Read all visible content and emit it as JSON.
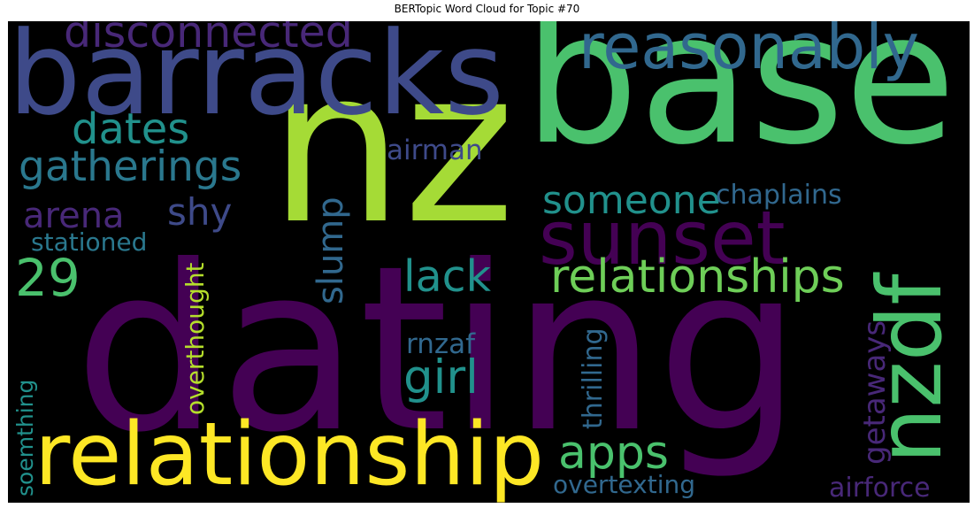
{
  "title": "BERTopic Word Cloud for Topic #70",
  "words": [
    {
      "text": "dating",
      "color": "#440154"
    },
    {
      "text": "nz",
      "color": "#a5db36"
    },
    {
      "text": "base",
      "color": "#4ac16d"
    },
    {
      "text": "barracks",
      "color": "#3e4a89"
    },
    {
      "text": "relationship",
      "color": "#fde725"
    },
    {
      "text": "nzdf",
      "color": "#4ac16d"
    },
    {
      "text": "sunset",
      "color": "#440154"
    },
    {
      "text": "reasonably",
      "color": "#31688e"
    },
    {
      "text": "disconnected",
      "color": "#482878"
    },
    {
      "text": "relationships",
      "color": "#6ece58"
    },
    {
      "text": "gatherings",
      "color": "#2a788e"
    },
    {
      "text": "dates",
      "color": "#21918c"
    },
    {
      "text": "someone",
      "color": "#21918c"
    },
    {
      "text": "shy",
      "color": "#3e4a89"
    },
    {
      "text": "arena",
      "color": "#482878"
    },
    {
      "text": "lack",
      "color": "#21918c"
    },
    {
      "text": "girl",
      "color": "#21918c"
    },
    {
      "text": "apps",
      "color": "#4ac16d"
    },
    {
      "text": "29",
      "color": "#4ac16d"
    },
    {
      "text": "slump",
      "color": "#31688e"
    },
    {
      "text": "chaplains",
      "color": "#31688e"
    },
    {
      "text": "airman",
      "color": "#3e4a89"
    },
    {
      "text": "stationed",
      "color": "#2a788e"
    },
    {
      "text": "overthought",
      "color": "#b5de2b"
    },
    {
      "text": "getaways",
      "color": "#482878"
    },
    {
      "text": "thrilling",
      "color": "#31688e"
    },
    {
      "text": "rnzaf",
      "color": "#31688e"
    },
    {
      "text": "soemthing",
      "color": "#21918c"
    },
    {
      "text": "overtexting",
      "color": "#31688e"
    },
    {
      "text": "airforce",
      "color": "#482878"
    }
  ]
}
